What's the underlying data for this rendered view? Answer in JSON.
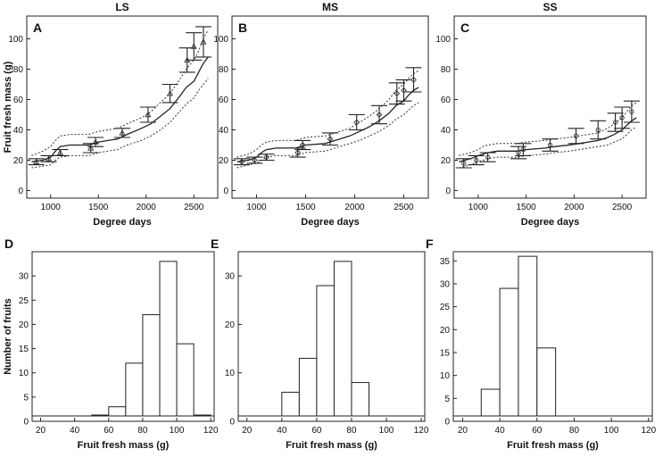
{
  "chart_data": [
    {
      "type": "line",
      "panel": "A",
      "title": "LS",
      "xlabel": "Degree days",
      "ylabel": "Fruit fresh mass (g)",
      "xlim": [
        750,
        2750
      ],
      "ylim": [
        -5,
        115
      ],
      "xticks": [
        1000,
        1500,
        2000,
        2500
      ],
      "yticks": [
        0,
        20,
        40,
        60,
        80,
        100
      ],
      "marker": "triangle",
      "observed": [
        {
          "x": 850,
          "y": 19,
          "err": 2
        },
        {
          "x": 980,
          "y": 21,
          "err": 2
        },
        {
          "x": 1100,
          "y": 25,
          "err": 2
        },
        {
          "x": 1420,
          "y": 28,
          "err": 3
        },
        {
          "x": 1470,
          "y": 32,
          "err": 3
        },
        {
          "x": 1750,
          "y": 38,
          "err": 3
        },
        {
          "x": 2020,
          "y": 50,
          "err": 5
        },
        {
          "x": 2250,
          "y": 64,
          "err": 6
        },
        {
          "x": 2430,
          "y": 86,
          "err": 8
        },
        {
          "x": 2500,
          "y": 95,
          "err": 9
        },
        {
          "x": 2600,
          "y": 98,
          "err": 10
        }
      ],
      "series": [
        {
          "name": "simulated mean",
          "style": "solid",
          "x": [
            800,
            920,
            1000,
            1050,
            1100,
            1200,
            1400,
            1500,
            1700,
            1800,
            1950,
            2050,
            2150,
            2250,
            2350,
            2420,
            2500,
            2550,
            2600,
            2650
          ],
          "y": [
            19,
            20,
            22,
            26,
            29,
            30,
            30,
            32,
            34,
            37,
            41,
            44,
            49,
            54,
            62,
            68,
            72,
            78,
            84,
            88
          ]
        },
        {
          "name": "upper bound",
          "style": "dotted",
          "x": [
            800,
            920,
            1000,
            1050,
            1100,
            1200,
            1400,
            1500,
            1700,
            1800,
            1950,
            2050,
            2150,
            2250,
            2350,
            2420,
            2500,
            2550,
            2600,
            2650
          ],
          "y": [
            23,
            26,
            29,
            33,
            36,
            37,
            37,
            39,
            41,
            44,
            48,
            52,
            58,
            64,
            73,
            80,
            86,
            92,
            100,
            106
          ]
        },
        {
          "name": "lower bound",
          "style": "dotted",
          "x": [
            800,
            920,
            1000,
            1050,
            1100,
            1200,
            1400,
            1500,
            1700,
            1800,
            1950,
            2050,
            2150,
            2250,
            2350,
            2420,
            2500,
            2550,
            2600,
            2650
          ],
          "y": [
            15,
            16,
            17,
            20,
            22,
            23,
            23,
            25,
            27,
            30,
            33,
            36,
            40,
            45,
            52,
            57,
            61,
            66,
            70,
            74
          ]
        }
      ]
    },
    {
      "type": "line",
      "panel": "B",
      "title": "MS",
      "xlabel": "Degree days",
      "ylabel": "",
      "xlim": [
        750,
        2750
      ],
      "ylim": [
        -5,
        115
      ],
      "xticks": [
        1000,
        1500,
        2000,
        2500
      ],
      "yticks": [
        0,
        20,
        40,
        60,
        80,
        100
      ],
      "marker": "diamond",
      "observed": [
        {
          "x": 850,
          "y": 19,
          "err": 2
        },
        {
          "x": 980,
          "y": 20,
          "err": 2
        },
        {
          "x": 1100,
          "y": 22,
          "err": 2
        },
        {
          "x": 1420,
          "y": 25,
          "err": 3
        },
        {
          "x": 1470,
          "y": 30,
          "err": 3
        },
        {
          "x": 1750,
          "y": 34,
          "err": 4
        },
        {
          "x": 2020,
          "y": 45,
          "err": 5
        },
        {
          "x": 2250,
          "y": 50,
          "err": 6
        },
        {
          "x": 2430,
          "y": 64,
          "err": 7
        },
        {
          "x": 2500,
          "y": 66,
          "err": 7
        },
        {
          "x": 2600,
          "y": 73,
          "err": 8
        }
      ],
      "series": [
        {
          "name": "simulated mean",
          "style": "solid",
          "x": [
            800,
            920,
            1000,
            1050,
            1100,
            1200,
            1400,
            1500,
            1700,
            1800,
            1950,
            2050,
            2150,
            2250,
            2350,
            2420,
            2500,
            2550,
            2600,
            2650
          ],
          "y": [
            19,
            20,
            22,
            25,
            27,
            28,
            28,
            30,
            31,
            33,
            36,
            39,
            42,
            46,
            51,
            56,
            59,
            63,
            66,
            68
          ]
        },
        {
          "name": "upper bound",
          "style": "dotted",
          "x": [
            800,
            920,
            1000,
            1050,
            1100,
            1200,
            1400,
            1500,
            1700,
            1800,
            1950,
            2050,
            2150,
            2250,
            2350,
            2420,
            2500,
            2550,
            2600,
            2650
          ],
          "y": [
            22,
            24,
            27,
            30,
            32,
            33,
            33,
            35,
            36,
            38,
            41,
            45,
            49,
            54,
            60,
            66,
            70,
            74,
            77,
            79
          ]
        },
        {
          "name": "lower bound",
          "style": "dotted",
          "x": [
            800,
            920,
            1000,
            1050,
            1100,
            1200,
            1400,
            1500,
            1700,
            1800,
            1950,
            2050,
            2150,
            2250,
            2350,
            2420,
            2500,
            2550,
            2600,
            2650
          ],
          "y": [
            15,
            17,
            18,
            20,
            22,
            23,
            23,
            25,
            26,
            28,
            31,
            33,
            36,
            39,
            43,
            47,
            50,
            53,
            56,
            58
          ]
        }
      ]
    },
    {
      "type": "line",
      "panel": "C",
      "title": "SS",
      "xlabel": "Degree days",
      "ylabel": "",
      "xlim": [
        750,
        2750
      ],
      "ylim": [
        -5,
        115
      ],
      "xticks": [
        1000,
        1500,
        2000,
        2500
      ],
      "yticks": [
        0,
        20,
        40,
        60,
        80,
        100
      ],
      "marker": "circle",
      "observed": [
        {
          "x": 850,
          "y": 18,
          "err": 3
        },
        {
          "x": 980,
          "y": 20,
          "err": 3
        },
        {
          "x": 1100,
          "y": 22,
          "err": 3
        },
        {
          "x": 1420,
          "y": 25,
          "err": 4
        },
        {
          "x": 1470,
          "y": 27,
          "err": 4
        },
        {
          "x": 1750,
          "y": 30,
          "err": 4
        },
        {
          "x": 2020,
          "y": 36,
          "err": 5
        },
        {
          "x": 2250,
          "y": 40,
          "err": 6
        },
        {
          "x": 2430,
          "y": 45,
          "err": 6
        },
        {
          "x": 2500,
          "y": 48,
          "err": 7
        },
        {
          "x": 2600,
          "y": 52,
          "err": 7
        }
      ],
      "series": [
        {
          "name": "simulated mean",
          "style": "solid",
          "x": [
            800,
            920,
            1000,
            1050,
            1100,
            1200,
            1400,
            1500,
            1700,
            1800,
            1950,
            2050,
            2150,
            2250,
            2350,
            2420,
            2500,
            2550,
            2600,
            2650
          ],
          "y": [
            19,
            21,
            23,
            24,
            25,
            26,
            26,
            27,
            28,
            29,
            30,
            31,
            32,
            33,
            35,
            37,
            40,
            43,
            46,
            48
          ]
        },
        {
          "name": "upper bound",
          "style": "dotted",
          "x": [
            800,
            920,
            1000,
            1050,
            1100,
            1200,
            1400,
            1500,
            1700,
            1800,
            1950,
            2050,
            2150,
            2250,
            2350,
            2420,
            2500,
            2550,
            2600,
            2650
          ],
          "y": [
            23,
            25,
            27,
            29,
            30,
            31,
            31,
            32,
            33,
            34,
            35,
            36,
            37,
            38,
            41,
            44,
            48,
            52,
            56,
            58
          ]
        },
        {
          "name": "lower bound",
          "style": "dotted",
          "x": [
            800,
            920,
            1000,
            1050,
            1100,
            1200,
            1400,
            1500,
            1700,
            1800,
            1950,
            2050,
            2150,
            2250,
            2350,
            2420,
            2500,
            2550,
            2600,
            2650
          ],
          "y": [
            15,
            17,
            19,
            20,
            21,
            22,
            22,
            23,
            24,
            25,
            26,
            27,
            28,
            29,
            30,
            32,
            34,
            37,
            40,
            42
          ]
        }
      ]
    },
    {
      "type": "bar",
      "panel": "D",
      "xlabel": "Fruit fresh mass (g)",
      "ylabel": "Number of fruits",
      "xlim": [
        15,
        122
      ],
      "ylim": [
        0,
        35
      ],
      "xticks": [
        20,
        40,
        60,
        80,
        100,
        120
      ],
      "yticks": [
        0,
        5,
        10,
        15,
        20,
        25,
        30
      ],
      "bin_width": 10,
      "bin_starts": [
        20,
        30,
        40,
        50,
        60,
        70,
        80,
        90,
        100,
        110
      ],
      "values": [
        0,
        0,
        0,
        1,
        3,
        12,
        22,
        33,
        16,
        1
      ]
    },
    {
      "type": "bar",
      "panel": "E",
      "xlabel": "Fruit fresh mass (g)",
      "ylabel": "",
      "xlim": [
        15,
        122
      ],
      "ylim": [
        0,
        35
      ],
      "xticks": [
        20,
        40,
        60,
        80,
        100,
        120
      ],
      "yticks": [
        0,
        10,
        20,
        30
      ],
      "bin_width": 10,
      "bin_starts": [
        20,
        30,
        40,
        50,
        60,
        70,
        80,
        90,
        100,
        110
      ],
      "values": [
        0,
        0,
        6,
        13,
        28,
        33,
        8,
        0,
        0,
        0
      ]
    },
    {
      "type": "bar",
      "panel": "F",
      "xlabel": "Fruit fresh mass (g)",
      "ylabel": "",
      "xlim": [
        15,
        122
      ],
      "ylim": [
        0,
        37
      ],
      "xticks": [
        20,
        40,
        60,
        80,
        100,
        120
      ],
      "yticks": [
        0,
        5,
        10,
        15,
        20,
        25,
        30,
        35
      ],
      "bin_width": 10,
      "bin_starts": [
        20,
        30,
        40,
        50,
        60,
        70,
        80,
        90,
        100,
        110
      ],
      "values": [
        0,
        7,
        29,
        36,
        16,
        0,
        0,
        0,
        0,
        0
      ]
    }
  ]
}
